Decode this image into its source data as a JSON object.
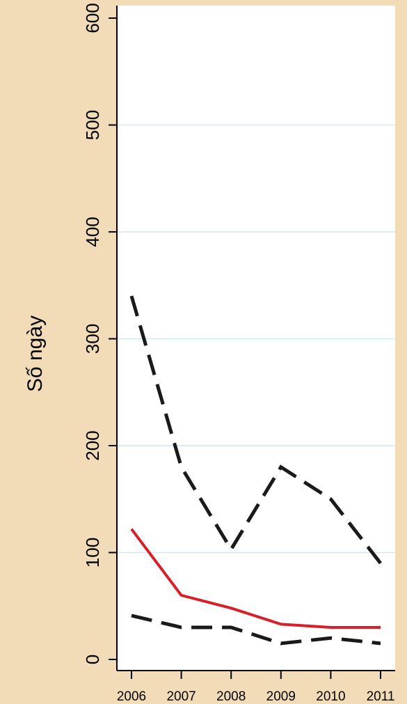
{
  "chart_data": {
    "type": "line",
    "title": "",
    "xlabel": "",
    "ylabel": "Số ngày",
    "x": [
      "2006",
      "2007",
      "2008",
      "2009",
      "2010",
      "2011"
    ],
    "ylim": [
      0,
      600
    ],
    "yticks": [
      0,
      100,
      200,
      300,
      400,
      500,
      600
    ],
    "grid": "horizontal",
    "legend": "none",
    "series": [
      {
        "values": [
          340,
          180,
          103,
          180,
          150,
          90
        ],
        "color": "#1a1a1a",
        "style": "dashed"
      },
      {
        "values": [
          122,
          60,
          48,
          33,
          30,
          30
        ],
        "color": "#d6202a",
        "style": "solid"
      },
      {
        "values": [
          41,
          30,
          30,
          15,
          20,
          15
        ],
        "color": "#1a1a1a",
        "style": "dashed"
      }
    ]
  },
  "colors": {
    "page_background": "#f2dcb7",
    "plot_background": "#ffffff",
    "gridline": "#cfe8f2",
    "axis": "#000000"
  }
}
